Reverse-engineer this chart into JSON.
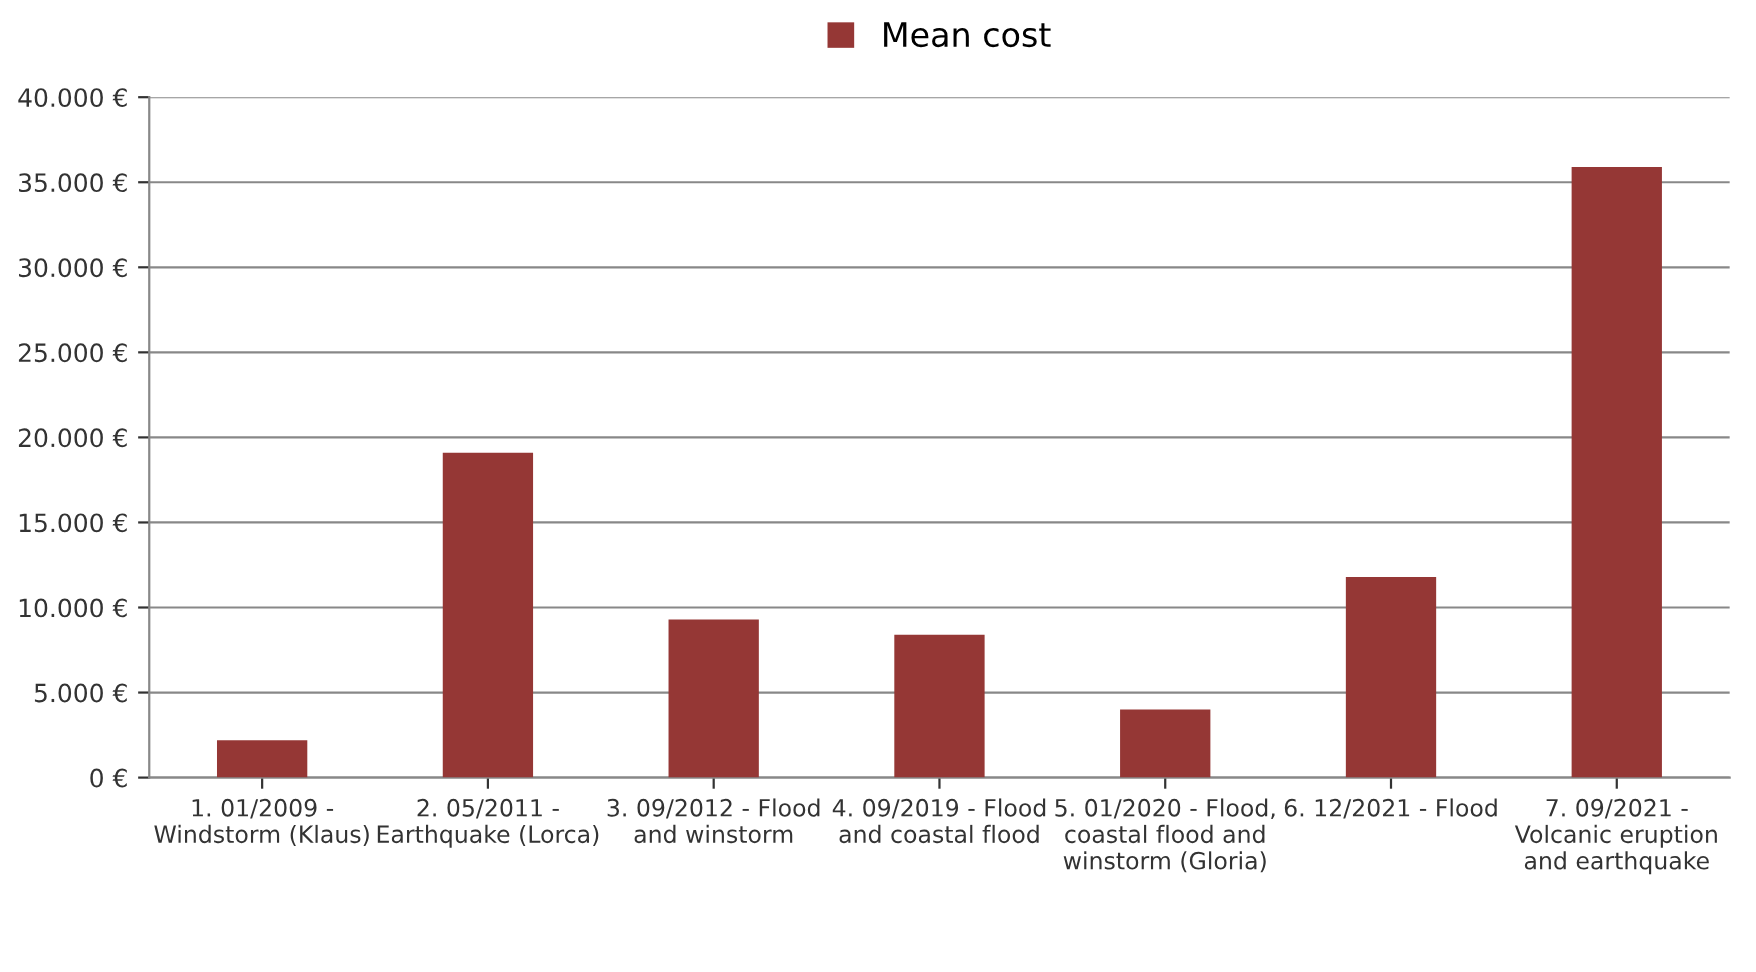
{
  "chart_data": {
    "type": "bar",
    "categories": [
      "1. 01/2009 - Windstorm (Klaus)",
      "2. 05/2011 - Earthquake (Lorca)",
      "3. 09/2012 - Flood and winstorm",
      "4. 09/2019 - Flood and coastal flood",
      "5. 01/2020 - Flood, coastal flood and winstorm (Gloria)",
      "6. 12/2021 - Flood",
      "7. 09/2021 - Volcanic eruption and earthquake"
    ],
    "series": [
      {
        "name": "Mean cost",
        "color": "#953735",
        "values": [
          2200,
          19100,
          9300,
          8400,
          4000,
          11800,
          35900
        ]
      }
    ],
    "ylim": [
      0,
      40000
    ],
    "yticks": [
      {
        "value": 0,
        "label": "0 €"
      },
      {
        "value": 5000,
        "label": "5.000 €"
      },
      {
        "value": 10000,
        "label": "10.000 €"
      },
      {
        "value": 15000,
        "label": "15.000 €"
      },
      {
        "value": 20000,
        "label": "20.000 €"
      },
      {
        "value": 25000,
        "label": "25.000 €"
      },
      {
        "value": 30000,
        "label": "30.000 €"
      },
      {
        "value": 35000,
        "label": "35.000 €"
      },
      {
        "value": 40000,
        "label": "40.000 €"
      }
    ],
    "grid": "y",
    "legend": "top"
  }
}
